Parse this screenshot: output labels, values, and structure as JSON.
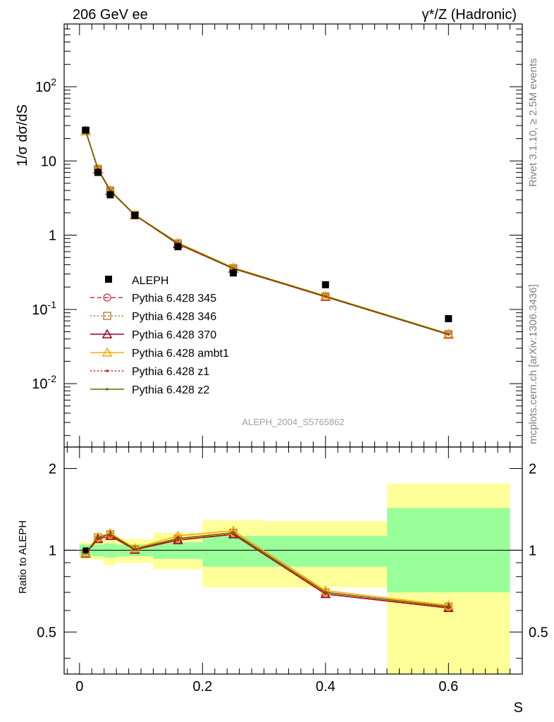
{
  "header": {
    "left": "206 GeV ee",
    "right": "γ*/Z (Hadronic)"
  },
  "side_text": {
    "top": "Rivet 3.1.10, ≥ 2.5M events",
    "bottom": "mcplots.cern.ch [arXiv:1306.3436]"
  },
  "colors": {
    "data": "#000000",
    "band_inner": "#99ff99",
    "band_outer": "#ffff99",
    "p345": "#cc3344",
    "p346": "#aa7733",
    "p370": "#990022",
    "ambt1": "#ffaa00",
    "z1": "#dd1111",
    "z2": "#666600"
  },
  "chart_data": [
    {
      "type": "scatter",
      "ylabel": "1/σ dσ/dS",
      "yscale": "log",
      "ylim": [
        0.0014,
        700
      ],
      "xlim": [
        -0.025,
        0.72
      ],
      "y_ticks": [
        {
          "value": 0.01,
          "label": "10^{-2}"
        },
        {
          "value": 0.1,
          "label": "10^{-1}"
        },
        {
          "value": 1,
          "label": "1"
        },
        {
          "value": 10,
          "label": "10"
        },
        {
          "value": 100,
          "label": "10^{2}"
        }
      ],
      "watermark": "ALEPH_2004_S5765862",
      "legend_position": "center-left",
      "data": {
        "name": "ALEPH",
        "x": [
          0.01,
          0.03,
          0.05,
          0.09,
          0.16,
          0.25,
          0.4,
          0.6
        ],
        "y": [
          26.0,
          7.0,
          3.5,
          1.85,
          0.7,
          0.31,
          0.215,
          0.075
        ]
      },
      "series": [
        {
          "name": "Pythia 6.428 345",
          "style": "dashed",
          "marker": "circle",
          "color_key": "p345",
          "y": [
            25.3,
            7.7,
            3.95,
            1.86,
            0.76,
            0.355,
            0.148,
            0.046
          ]
        },
        {
          "name": "Pythia 6.428 346",
          "style": "dotted",
          "marker": "square",
          "color_key": "p346",
          "y": [
            25.4,
            7.8,
            4.0,
            1.87,
            0.775,
            0.36,
            0.15,
            0.0465
          ]
        },
        {
          "name": "Pythia 6.428 370",
          "style": "solid",
          "marker": "triangle",
          "color_key": "p370",
          "y": [
            25.3,
            7.7,
            3.95,
            1.86,
            0.76,
            0.355,
            0.148,
            0.046
          ]
        },
        {
          "name": "Pythia 6.428 ambt1",
          "style": "solid",
          "marker": "triangle",
          "color_key": "ambt1",
          "y": [
            25.5,
            7.85,
            4.05,
            1.88,
            0.79,
            0.365,
            0.152,
            0.047
          ]
        },
        {
          "name": "Pythia 6.428 z1",
          "style": "dotted",
          "marker": "dot",
          "color_key": "z1",
          "y": [
            25.3,
            7.7,
            3.95,
            1.86,
            0.76,
            0.355,
            0.148,
            0.046
          ]
        },
        {
          "name": "Pythia 6.428 z2",
          "style": "solid",
          "marker": "dot",
          "color_key": "z2",
          "y": [
            25.4,
            7.8,
            4.0,
            1.87,
            0.775,
            0.36,
            0.15,
            0.0465
          ]
        }
      ]
    },
    {
      "type": "line",
      "ylabel": "Ratio to ALEPH",
      "xlabel": "S",
      "yscale": "log",
      "ylim": [
        0.35,
        2.4
      ],
      "xlim": [
        -0.025,
        0.72
      ],
      "y_ticks": [
        {
          "value": 0.5,
          "label": "0.5"
        },
        {
          "value": 1,
          "label": "1"
        },
        {
          "value": 2,
          "label": "2"
        }
      ],
      "x_ticks": [
        {
          "value": 0,
          "label": "0"
        },
        {
          "value": 0.2,
          "label": "0.2"
        },
        {
          "value": 0.4,
          "label": "0.4"
        },
        {
          "value": 0.6,
          "label": "0.6"
        }
      ],
      "bands": [
        {
          "x0": 0.0,
          "x1": 0.02,
          "inner": [
            0.95,
            1.05
          ],
          "outer": [
            0.93,
            1.07
          ]
        },
        {
          "x0": 0.02,
          "x1": 0.04,
          "inner": [
            0.95,
            1.05
          ],
          "outer": [
            0.925,
            1.08
          ]
        },
        {
          "x0": 0.04,
          "x1": 0.06,
          "inner": [
            0.94,
            1.06
          ],
          "outer": [
            0.88,
            1.12
          ]
        },
        {
          "x0": 0.06,
          "x1": 0.12,
          "inner": [
            0.95,
            1.05
          ],
          "outer": [
            0.9,
            1.1
          ]
        },
        {
          "x0": 0.12,
          "x1": 0.2,
          "inner": [
            0.93,
            1.07
          ],
          "outer": [
            0.85,
            1.16
          ]
        },
        {
          "x0": 0.2,
          "x1": 0.3,
          "inner": [
            0.87,
            1.13
          ],
          "outer": [
            0.73,
            1.29
          ]
        },
        {
          "x0": 0.3,
          "x1": 0.5,
          "inner": [
            0.87,
            1.13
          ],
          "outer": [
            0.73,
            1.28
          ]
        },
        {
          "x0": 0.5,
          "x1": 0.7,
          "inner": [
            0.7,
            1.43
          ],
          "outer": [
            0.3,
            1.76
          ]
        }
      ],
      "x": [
        0.01,
        0.03,
        0.05,
        0.09,
        0.16,
        0.25,
        0.4,
        0.6
      ],
      "series": [
        {
          "name": "Pythia 6.428 345",
          "color_key": "p345",
          "style": "dashed",
          "marker": "circle",
          "y": [
            0.973,
            1.1,
            1.13,
            1.005,
            1.09,
            1.145,
            0.69,
            0.613
          ]
        },
        {
          "name": "Pythia 6.428 346",
          "color_key": "p346",
          "style": "dotted",
          "marker": "square",
          "y": [
            0.977,
            1.115,
            1.145,
            1.01,
            1.105,
            1.16,
            0.7,
            0.62
          ]
        },
        {
          "name": "Pythia 6.428 370",
          "color_key": "p370",
          "style": "solid",
          "marker": "triangle",
          "y": [
            0.973,
            1.1,
            1.13,
            1.005,
            1.09,
            1.145,
            0.69,
            0.613
          ]
        },
        {
          "name": "Pythia 6.428 ambt1",
          "color_key": "ambt1",
          "style": "solid",
          "marker": "triangle",
          "y": [
            0.98,
            1.12,
            1.157,
            1.017,
            1.13,
            1.18,
            0.71,
            0.627
          ]
        },
        {
          "name": "Pythia 6.428 z1",
          "color_key": "z1",
          "style": "dotted",
          "marker": "dot",
          "y": [
            0.973,
            1.1,
            1.13,
            1.005,
            1.09,
            1.145,
            0.69,
            0.613
          ]
        },
        {
          "name": "Pythia 6.428 z2",
          "color_key": "z2",
          "style": "solid",
          "marker": "dot",
          "y": [
            0.977,
            1.115,
            1.145,
            1.01,
            1.105,
            1.16,
            0.7,
            0.62
          ]
        }
      ]
    }
  ]
}
